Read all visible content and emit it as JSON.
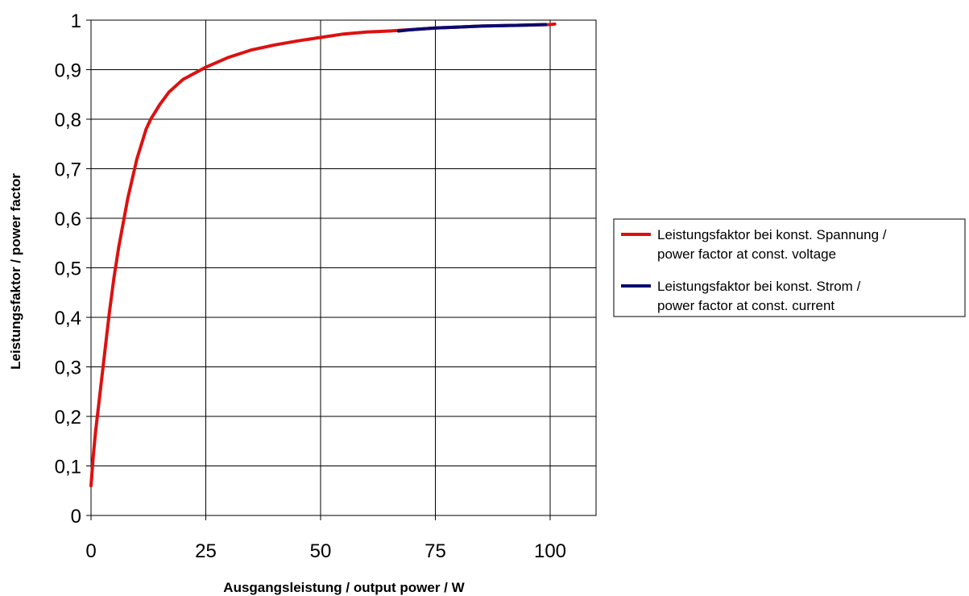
{
  "chart_data": {
    "type": "line",
    "title": "",
    "xlabel": "Ausgangsleistung / output power / W",
    "ylabel": "Leistungsfaktor / power factor",
    "xlim": [
      0,
      110
    ],
    "ylim": [
      0,
      1
    ],
    "xticks": [
      0,
      25,
      50,
      75,
      100
    ],
    "yticks": [
      0,
      0.1,
      0.2,
      0.3,
      0.4,
      0.5,
      0.6,
      0.7,
      0.8,
      0.9,
      1
    ],
    "xtick_labels": [
      "0",
      "25",
      "50",
      "75",
      "100"
    ],
    "ytick_labels": [
      "0",
      "0,1",
      "0,2",
      "0,3",
      "0,4",
      "0,5",
      "0,6",
      "0,7",
      "0,8",
      "0,9",
      "1"
    ],
    "grid": true,
    "legend_position": "right",
    "series": [
      {
        "name": "Leistungsfaktor bei konst. Spannung / power factor at const. voltage",
        "legend_lines": [
          "Leistungsfaktor bei konst. Spannung /",
          "power factor at const. voltage"
        ],
        "color": "#dd1111",
        "x": [
          0,
          0.5,
          1,
          2,
          3,
          4,
          5,
          6,
          7,
          8,
          9,
          10,
          11,
          12,
          13,
          14,
          15,
          17,
          20,
          25,
          30,
          35,
          40,
          45,
          50,
          55,
          60,
          65,
          70,
          75,
          80,
          85,
          90,
          95,
          100,
          101
        ],
        "y": [
          0.06,
          0.12,
          0.17,
          0.25,
          0.33,
          0.41,
          0.48,
          0.54,
          0.59,
          0.64,
          0.68,
          0.72,
          0.75,
          0.78,
          0.8,
          0.815,
          0.83,
          0.855,
          0.88,
          0.905,
          0.925,
          0.94,
          0.95,
          0.958,
          0.965,
          0.972,
          0.976,
          0.978,
          0.981,
          0.984,
          0.986,
          0.988,
          0.989,
          0.99,
          0.991,
          0.992
        ]
      },
      {
        "name": "Leistungsfaktor bei konst. Strom / power factor at const. current",
        "legend_lines": [
          "Leistungsfaktor bei konst. Strom /",
          "power factor at const. current"
        ],
        "color": "#0a0a6e",
        "x": [
          67,
          70,
          75,
          80,
          85,
          90,
          95,
          99
        ],
        "y": [
          0.978,
          0.981,
          0.984,
          0.986,
          0.988,
          0.989,
          0.99,
          0.991
        ]
      }
    ]
  }
}
